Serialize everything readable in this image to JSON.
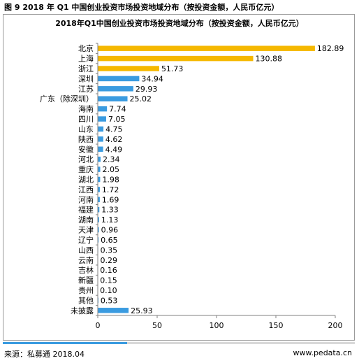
{
  "figure_caption": "图 9 2018 年 Q1 中国创业投资市场投资地域分布（按投资金额，人民币亿元）",
  "footer": {
    "source": "来源：私募通 2018.04",
    "url": "www.pedata.cn"
  },
  "colors": {
    "highlight_bar": "#f5b800",
    "normal_bar": "#3a9be0",
    "axis": "#808080"
  },
  "chart_data": {
    "type": "bar",
    "orientation": "horizontal",
    "title": "2018年Q1中国创业投资市场投资地域分布（按投资金额，人民币亿元）",
    "categories": [
      "北京",
      "上海",
      "浙江",
      "深圳",
      "江苏",
      "广东（除深圳）",
      "海南",
      "四川",
      "山东",
      "陕西",
      "安徽",
      "河北",
      "重庆",
      "湖北",
      "江西",
      "河南",
      "福建",
      "湖南",
      "天津",
      "辽宁",
      "山西",
      "云南",
      "吉林",
      "新疆",
      "贵州",
      "其他",
      "未披露"
    ],
    "values": [
      182.89,
      130.88,
      51.73,
      34.94,
      29.93,
      25.02,
      7.74,
      7.05,
      4.75,
      4.62,
      4.49,
      2.34,
      2.05,
      1.98,
      1.72,
      1.69,
      1.33,
      1.13,
      0.96,
      0.65,
      0.35,
      0.29,
      0.16,
      0.15,
      0.1,
      0.53,
      25.93
    ],
    "value_labels": [
      "182.89",
      "130.88",
      "51.73",
      "34.94",
      "29.93",
      "25.02",
      "7.74",
      "7.05",
      "4.75",
      "4.62",
      "4.49",
      "2.34",
      "2.05",
      "1.98",
      "1.72",
      "1.69",
      "1.33",
      "1.13",
      "0.96",
      "0.65",
      "0.35",
      "0.29",
      "0.16",
      "0.15",
      "0.10",
      "0.53",
      "25.93"
    ],
    "highlighted_categories": [
      "北京",
      "上海",
      "浙江"
    ],
    "xlim": [
      0,
      200
    ],
    "xticks": [
      "0",
      "50",
      "100",
      "150",
      "200"
    ],
    "grid": false,
    "legend": "none"
  }
}
